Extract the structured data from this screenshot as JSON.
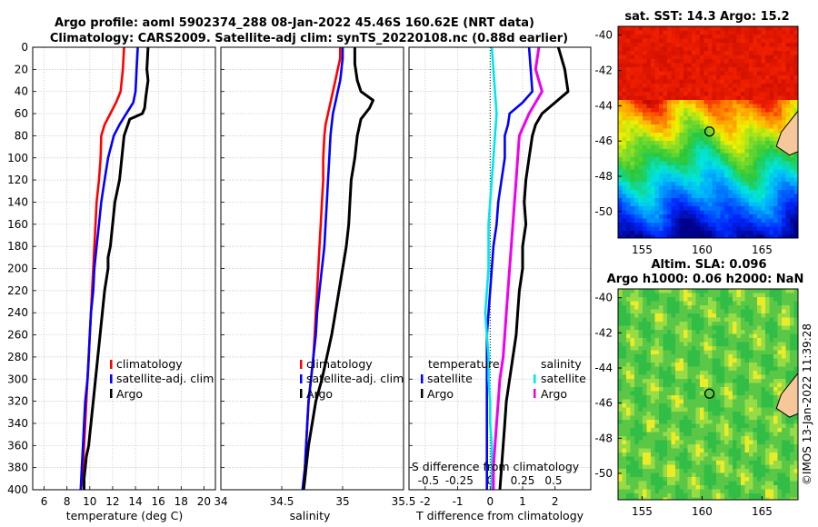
{
  "title": {
    "line1": "Argo profile: aoml 5902374_288 08-Jan-2022 45.46S 160.62E (NRT data)",
    "line2": "Climatology: CARS2009. Satellite-adj clim: synTS_20220108.nc (0.88d earlier)"
  },
  "depth_axis": {
    "ticks": [
      "0",
      "20",
      "40",
      "60",
      "80",
      "100",
      "120",
      "140",
      "160",
      "180",
      "200",
      "220",
      "240",
      "260",
      "280",
      "300",
      "320",
      "340",
      "360",
      "380",
      "400"
    ],
    "range": [
      0,
      400
    ]
  },
  "colors": {
    "climatology": "#ff0000",
    "satellite": "#0000ff",
    "argo": "#000000",
    "sat_diff": "#00e5ee",
    "sal_diff": "#ee00ee"
  },
  "chart_data": [
    {
      "type": "line",
      "name": "temperature",
      "xlabel": "temperature (deg C)",
      "xlim": [
        5,
        21
      ],
      "xticks": [
        6,
        8,
        10,
        12,
        14,
        16,
        18,
        20
      ],
      "xtick_labels": [
        "6",
        "8",
        "10",
        "12",
        "14",
        "16",
        "18",
        "20"
      ],
      "series": [
        {
          "name": "climatology",
          "x": [
            13.0,
            12.9,
            12.7,
            12.3,
            11.8,
            11.3,
            11.0,
            10.95,
            10.8,
            10.6,
            10.5,
            10.4,
            10.3,
            10.2,
            10.1,
            10.0,
            9.9,
            9.8,
            9.7,
            9.6,
            9.5,
            9.4,
            9.3,
            9.2
          ],
          "depth": [
            0,
            20,
            40,
            50,
            60,
            70,
            80,
            100,
            120,
            140,
            160,
            180,
            200,
            220,
            240,
            260,
            280,
            300,
            320,
            340,
            360,
            380,
            395,
            400
          ]
        },
        {
          "name": "satellite-adj. clim",
          "x": [
            14.2,
            14.1,
            14.0,
            13.8,
            13.2,
            12.6,
            12.1,
            11.6,
            11.3,
            11.0,
            10.8,
            10.6,
            10.4,
            10.3,
            10.1,
            10.0,
            9.9,
            9.8,
            9.6,
            9.5,
            9.4,
            9.3,
            9.2
          ],
          "depth": [
            0,
            20,
            40,
            50,
            60,
            70,
            80,
            100,
            120,
            140,
            160,
            180,
            200,
            220,
            240,
            260,
            280,
            300,
            320,
            340,
            360,
            380,
            400
          ]
        },
        {
          "name": "Argo",
          "x": [
            15.1,
            15.0,
            15.1,
            14.9,
            14.8,
            14.6,
            13.5,
            13.0,
            12.8,
            12.6,
            12.2,
            12.0,
            11.8,
            11.6,
            11.6,
            11.3,
            11.1,
            10.9,
            10.7,
            10.5,
            10.3,
            10.1,
            10.0,
            9.9,
            9.7,
            9.6,
            9.5,
            9.5
          ],
          "depth": [
            0,
            20,
            30,
            45,
            55,
            60,
            65,
            80,
            100,
            120,
            140,
            160,
            180,
            190,
            200,
            220,
            240,
            260,
            280,
            300,
            320,
            340,
            350,
            360,
            370,
            380,
            390,
            400
          ]
        }
      ]
    },
    {
      "type": "line",
      "name": "salinity",
      "xlabel": "salinity",
      "xlim": [
        34,
        35.5
      ],
      "xticks": [
        34,
        34.5,
        35,
        35.5
      ],
      "xtick_labels": [
        "34",
        "34.5",
        "35",
        "35.5"
      ],
      "series": [
        {
          "name": "climatology",
          "x": [
            34.98,
            34.98,
            34.96,
            34.94,
            34.92,
            34.9,
            34.88,
            34.86,
            34.85,
            34.84,
            34.84,
            34.83,
            34.82,
            34.81,
            34.8,
            34.79,
            34.78,
            34.77,
            34.76,
            34.74,
            34.72,
            34.71,
            34.7,
            34.69,
            34.68
          ],
          "depth": [
            0,
            10,
            20,
            30,
            40,
            50,
            60,
            70,
            80,
            100,
            120,
            140,
            160,
            180,
            200,
            220,
            240,
            260,
            280,
            300,
            320,
            340,
            360,
            380,
            400
          ]
        },
        {
          "name": "satellite-adj. clim",
          "x": [
            35.0,
            35.0,
            34.99,
            34.98,
            34.96,
            34.94,
            34.92,
            34.91,
            34.9,
            34.89,
            34.88,
            34.87,
            34.86,
            34.85,
            34.83,
            34.81,
            34.79,
            34.78,
            34.76,
            34.74,
            34.72,
            34.71,
            34.7,
            34.69,
            34.67
          ],
          "depth": [
            0,
            10,
            20,
            30,
            40,
            50,
            60,
            70,
            80,
            100,
            120,
            140,
            160,
            180,
            200,
            220,
            240,
            260,
            280,
            300,
            320,
            340,
            360,
            380,
            400
          ]
        },
        {
          "name": "Argo",
          "x": [
            35.1,
            35.1,
            35.12,
            35.15,
            35.25,
            35.22,
            35.15,
            35.12,
            35.1,
            35.07,
            35.06,
            35.05,
            35.03,
            35.0,
            34.97,
            34.94,
            34.91,
            34.87,
            34.83,
            34.78,
            34.75,
            34.72,
            34.7,
            34.69,
            34.68
          ],
          "depth": [
            0,
            15,
            30,
            40,
            48,
            55,
            65,
            80,
            100,
            120,
            140,
            160,
            180,
            200,
            220,
            240,
            260,
            280,
            300,
            320,
            340,
            360,
            380,
            390,
            400
          ]
        }
      ]
    },
    {
      "type": "line",
      "name": "difference",
      "xlabel": "T difference from climatology",
      "xlim": [
        -2.5,
        3.1
      ],
      "xticks": [
        -2,
        -1,
        0,
        1,
        2
      ],
      "xtick_labels": [
        "-2",
        "-1",
        "0",
        "1",
        "2"
      ],
      "top_label": "S difference from climatology",
      "top_ticks": [
        "-0.5",
        "-0.25",
        "0",
        "0.25",
        "0.5"
      ],
      "top_tick_x": [
        -1.9,
        -0.95,
        0.0,
        1.0,
        1.95
      ],
      "series": [
        {
          "name": "temperature satellite",
          "x": [
            1.2,
            1.25,
            1.3,
            1.0,
            0.6,
            0.55,
            0.45,
            0.45,
            0.35,
            0.25,
            0.2,
            0.1,
            0.05,
            0.0,
            -0.05,
            -0.1,
            -0.1,
            -0.1,
            -0.1,
            -0.1,
            -0.1,
            -0.1,
            -0.1
          ],
          "depth": [
            0,
            20,
            40,
            50,
            60,
            70,
            80,
            100,
            120,
            140,
            160,
            180,
            200,
            220,
            240,
            260,
            280,
            300,
            320,
            340,
            360,
            380,
            400
          ]
        },
        {
          "name": "temperature Argo",
          "x": [
            2.1,
            2.3,
            2.4,
            2.0,
            1.6,
            1.4,
            1.3,
            1.2,
            1.1,
            1.05,
            1.1,
            1.0,
            1.0,
            0.9,
            0.85,
            0.8,
            0.7,
            0.6,
            0.5,
            0.45,
            0.4,
            0.35,
            0.3
          ],
          "depth": [
            0,
            20,
            40,
            50,
            60,
            70,
            80,
            100,
            120,
            140,
            160,
            180,
            200,
            220,
            240,
            260,
            280,
            300,
            320,
            340,
            360,
            380,
            400
          ]
        },
        {
          "name": "salinity satellite",
          "x": [
            0.05,
            0.1,
            0.15,
            0.2,
            0.15,
            0.1,
            0.05,
            0.0,
            -0.05,
            -0.05,
            -0.05,
            -0.1,
            -0.15,
            -0.1,
            -0.05,
            -0.05,
            0.0,
            0.0,
            0.05,
            0.05,
            0.05
          ],
          "depth": [
            0,
            20,
            40,
            60,
            80,
            100,
            120,
            140,
            160,
            180,
            200,
            220,
            240,
            260,
            280,
            300,
            320,
            340,
            360,
            380,
            400
          ]
        },
        {
          "name": "salinity Argo",
          "x": [
            1.5,
            1.4,
            1.6,
            1.2,
            0.9,
            0.85,
            0.8,
            0.75,
            0.7,
            0.65,
            0.6,
            0.55,
            0.5,
            0.45,
            0.4,
            0.3,
            0.25,
            0.2,
            0.15,
            0.1,
            0.1
          ],
          "depth": [
            0,
            20,
            40,
            60,
            80,
            100,
            120,
            140,
            160,
            180,
            200,
            220,
            240,
            260,
            280,
            300,
            320,
            340,
            360,
            380,
            400
          ]
        }
      ]
    },
    {
      "type": "heatmap",
      "name": "satellite SST map",
      "title": "sat. SST: 14.3 Argo: 15.2",
      "x_ticks": [
        "155",
        "160",
        "165"
      ],
      "y_ticks": [
        "-40",
        "-42",
        "-44",
        "-46",
        "-48",
        "-50"
      ],
      "lon_range": [
        153,
        168
      ],
      "lat_range": [
        -51.5,
        -39.5
      ],
      "marker": {
        "lon": 160.62,
        "lat": -45.46
      }
    },
    {
      "type": "heatmap",
      "name": "altimetry SLA map",
      "title_line1": "Altim. SLA: 0.096",
      "title_line2": "Argo h1000: 0.06 h2000: NaN",
      "x_ticks": [
        "155",
        "160",
        "165"
      ],
      "y_ticks": [
        "-40",
        "-42",
        "-44",
        "-46",
        "-48",
        "-50"
      ],
      "lon_range": [
        153,
        168
      ],
      "lat_range": [
        -51.5,
        -39.5
      ],
      "marker": {
        "lon": 160.62,
        "lat": -45.46
      }
    }
  ],
  "legends": {
    "temperature": [
      "climatology",
      "satellite-adj. clim",
      "Argo"
    ],
    "salinity": [
      "climatology",
      "satellite-adj. clim",
      "Argo"
    ],
    "difference_t_head": "temperature",
    "difference_t": [
      "satellite",
      "Argo"
    ],
    "difference_s_head": "salinity",
    "difference_s": [
      "satellite",
      "Argo"
    ]
  },
  "credit": "©IMOS 13-Jan-2022 11:39:28"
}
